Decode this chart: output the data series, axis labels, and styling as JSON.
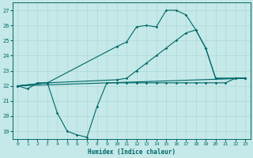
{
  "bg_color": "#c5e8e8",
  "line_color": "#006868",
  "grid_color": "#aad4d4",
  "xlabel": "Humidex (Indice chaleur)",
  "xlim": [
    -0.5,
    23.5
  ],
  "ylim": [
    18.5,
    27.5
  ],
  "xticks": [
    0,
    1,
    2,
    3,
    4,
    5,
    6,
    7,
    8,
    9,
    10,
    11,
    12,
    13,
    14,
    15,
    16,
    17,
    18,
    19,
    20,
    21,
    22,
    23
  ],
  "yticks": [
    19,
    20,
    21,
    22,
    23,
    24,
    25,
    26,
    27
  ],
  "curve1_x": [
    0,
    1,
    2,
    3,
    4,
    5,
    6,
    7,
    8,
    9,
    10,
    11,
    12,
    13,
    14,
    15,
    16,
    17,
    18,
    19,
    20,
    21,
    22,
    23
  ],
  "curve1_y": [
    22,
    21.8,
    22.2,
    22.2,
    20.2,
    19.0,
    18.75,
    18.6,
    20.6,
    22.2,
    22.2,
    22.2,
    22.2,
    22.2,
    22.2,
    22.2,
    22.2,
    22.2,
    22.2,
    22.2,
    22.2,
    22.2,
    22.5,
    22.5
  ],
  "curve2_x": [
    0,
    3,
    10,
    11,
    12,
    13,
    14,
    15,
    16,
    17,
    18,
    19,
    20,
    22,
    23
  ],
  "curve2_y": [
    22,
    22.2,
    24.6,
    24.9,
    25.9,
    26.0,
    25.9,
    27.0,
    27.0,
    26.7,
    25.7,
    24.5,
    22.5,
    22.5,
    22.5
  ],
  "curve3_x": [
    0,
    3,
    10,
    11,
    12,
    13,
    14,
    15,
    16,
    17,
    18,
    19,
    20,
    22,
    23
  ],
  "curve3_y": [
    22,
    22.2,
    22.4,
    22.5,
    23.0,
    23.5,
    24.0,
    24.5,
    25.0,
    25.5,
    25.7,
    24.5,
    22.5,
    22.5,
    22.5
  ],
  "curve4_x": [
    0,
    23
  ],
  "curve4_y": [
    22,
    22.5
  ]
}
